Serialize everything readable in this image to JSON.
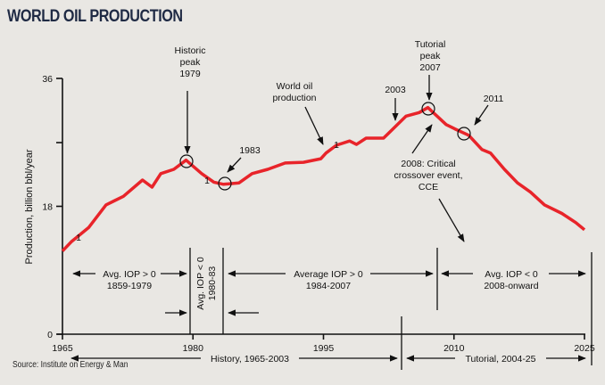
{
  "title": "World oil production",
  "source": "Source: Institute on Energy & Man",
  "chart_data": {
    "type": "line",
    "title": "World oil production",
    "xlabel": "",
    "ylabel": "Production, billion bbl/year",
    "xlim": [
      1965,
      2025
    ],
    "ylim": [
      0,
      36
    ],
    "x_ticks": [
      "1965",
      "1980",
      "1995",
      "2010",
      "2025"
    ],
    "y_ticks": [
      "0",
      "18",
      "36"
    ],
    "grid": false,
    "series": [
      {
        "name": "World oil production",
        "color": "#e8242a",
        "x": [
          1965,
          1966,
          1968,
          1970,
          1972,
          1974.2,
          1975.3,
          1976.3,
          1977.8,
          1979.2,
          1981,
          1982.4,
          1983.5,
          1985.3,
          1986.8,
          1988.6,
          1990.6,
          1992.7,
          1994.7,
          1995.3,
          1996.5,
          1998,
          1998.8,
          1999.9,
          2001.9,
          2002.4,
          2003.5,
          2004.5,
          2006,
          2007,
          2009.1,
          2010.1,
          2011.7,
          2013.2,
          2014.2,
          2015.8,
          2017.3,
          2018.8,
          2020.4,
          2022.4,
          2024,
          2025
        ],
        "y": [
          11.7,
          13,
          15,
          18.2,
          19.4,
          21.7,
          20.7,
          22.6,
          23.2,
          24.5,
          22.6,
          21.4,
          21.1,
          21.3,
          22.6,
          23.2,
          24.1,
          24.2,
          24.7,
          25.5,
          26.6,
          27.2,
          26.7,
          27.6,
          27.6,
          28.2,
          29.5,
          30.7,
          31.2,
          31.9,
          29.5,
          28.9,
          28,
          26,
          25.5,
          23.2,
          21.3,
          20,
          18.2,
          17,
          15.7,
          14.7
        ]
      }
    ],
    "annotations": {
      "historic_peak": [
        "Historic",
        "peak",
        "1979"
      ],
      "y1983": "1983",
      "world_oil_production": [
        "World oil",
        "production"
      ],
      "y2003": "2003",
      "tutorial_peak": [
        "Tutorial",
        "peak",
        "2007"
      ],
      "y2011": "2011",
      "cce": [
        "2008: Critical",
        "crossover event,",
        "CCE"
      ],
      "markers": [
        "1",
        "1",
        "1"
      ],
      "period1": [
        "Avg. IOP > 0",
        "1859-1979"
      ],
      "period2": [
        "Avg. IOP < 0",
        "1980-83"
      ],
      "period3": [
        "Average IOP > 0",
        "1984-2007"
      ],
      "period4": [
        "Avg. IOP < 0",
        "2008-onward"
      ],
      "history": "History, 1965-2003",
      "tutorial": "Tutorial, 2004-25"
    }
  }
}
